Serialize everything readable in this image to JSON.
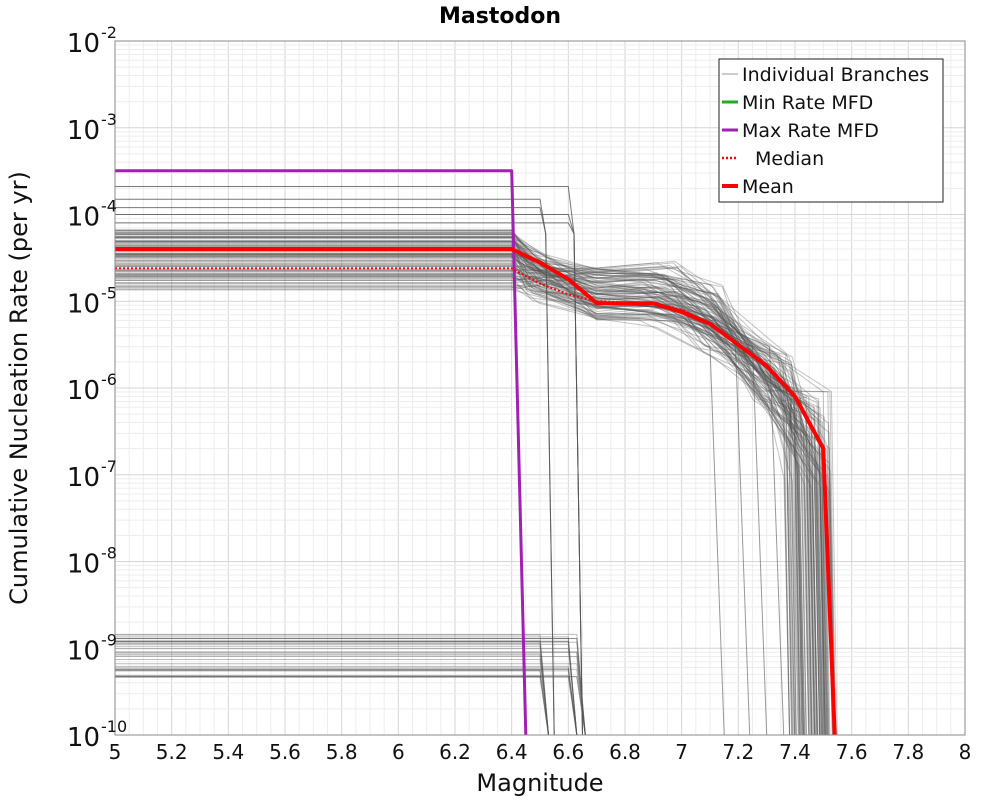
{
  "chart_data": {
    "type": "line",
    "title": "Mastodon",
    "xlabel": "Magnitude",
    "ylabel": "Cumulative Nucleation Rate (per yr)",
    "xlim": [
      5,
      8
    ],
    "ylim": [
      1e-10,
      0.01
    ],
    "yscale": "log",
    "grid": true,
    "legend_placement": "top-right",
    "x_ticks": [
      "5",
      "5.2",
      "5.4",
      "5.6",
      "5.8",
      "6",
      "6.2",
      "6.4",
      "6.6",
      "6.8",
      "7",
      "7.2",
      "7.4",
      "7.6",
      "7.8",
      "8"
    ],
    "y_tick_exponents": [
      "-10",
      "-9",
      "-8",
      "-7",
      "-6",
      "-5",
      "-4",
      "-3",
      "-2"
    ],
    "y_tick_base": "10",
    "legend": [
      {
        "label": "Individual Branches",
        "color": "#555555",
        "style": "thin"
      },
      {
        "label": "Min Rate MFD",
        "color": "#1fae1f",
        "style": "solid"
      },
      {
        "label": "Max Rate MFD",
        "color": "#a020b0",
        "style": "solid"
      },
      {
        "label": "Median",
        "color": "#ff0000",
        "style": "dotted"
      },
      {
        "label": "Mean",
        "color": "#ff0000",
        "style": "thick"
      }
    ],
    "series": [
      {
        "name": "Max Rate MFD",
        "color": "#a020b0",
        "x": [
          5.0,
          6.4,
          6.45
        ],
        "y": [
          0.00032,
          0.00032,
          1e-10
        ]
      },
      {
        "name": "Median",
        "color": "#ff0000",
        "x": [
          5.0,
          6.4,
          6.5,
          6.6,
          6.7,
          6.9,
          7.0,
          7.1,
          7.3,
          7.4,
          7.5,
          7.54
        ],
        "y": [
          2.4e-05,
          2.4e-05,
          1.6e-05,
          1.2e-05,
          1e-05,
          9.5e-06,
          8e-06,
          5.5e-06,
          1.8e-06,
          8e-07,
          2e-07,
          1e-10
        ]
      },
      {
        "name": "Mean",
        "color": "#ff0000",
        "x": [
          5.0,
          6.4,
          6.5,
          6.6,
          6.7,
          6.9,
          7.0,
          7.1,
          7.3,
          7.4,
          7.5,
          7.54
        ],
        "y": [
          4e-05,
          4e-05,
          2.8e-05,
          1.8e-05,
          9.5e-06,
          9.5e-06,
          7.5e-06,
          5.5e-06,
          1.8e-06,
          8e-07,
          2e-07,
          1e-10
        ]
      }
    ]
  }
}
